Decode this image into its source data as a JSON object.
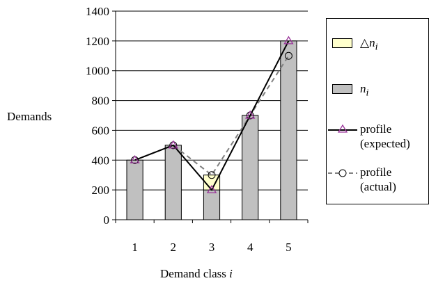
{
  "chart_data": {
    "type": "bar",
    "categories": [
      "1",
      "2",
      "3",
      "4",
      "5"
    ],
    "series": [
      {
        "name": "n_i",
        "kind": "bar",
        "color": "#c0c0c0",
        "values": [
          400,
          500,
          200,
          700,
          1200
        ]
      },
      {
        "name": "Δn_i",
        "kind": "bar-stacked",
        "color": "#ffffcc",
        "values": [
          0,
          0,
          100,
          0,
          0
        ]
      },
      {
        "name": "profile (expected)",
        "kind": "line",
        "color": "#000000",
        "marker": "triangle",
        "marker_color": "#993399",
        "values": [
          400,
          500,
          200,
          700,
          1200
        ]
      },
      {
        "name": "profile (actual)",
        "kind": "line-dashed",
        "color": "#808080",
        "marker": "circle",
        "marker_color": "#000000",
        "values": [
          400,
          500,
          300,
          700,
          1100
        ]
      }
    ],
    "xlabel": "Demand class i",
    "ylabel": "Demands",
    "ylim": [
      0,
      1400
    ],
    "yticks": [
      0,
      200,
      400,
      600,
      800,
      1000,
      1200,
      1400
    ],
    "grid": true,
    "legend_position": "right"
  },
  "legend": {
    "delta": {
      "symbol": "△",
      "var": "n",
      "sub": "i"
    },
    "n": {
      "var": "n",
      "sub": "i"
    },
    "expected": {
      "line1": "profile",
      "line2": "(expected)"
    },
    "actual": {
      "line1": "profile",
      "line2": "(actual)"
    }
  },
  "labels": {
    "y": "Demands",
    "x_text": "Demand class",
    "x_var": "i"
  }
}
